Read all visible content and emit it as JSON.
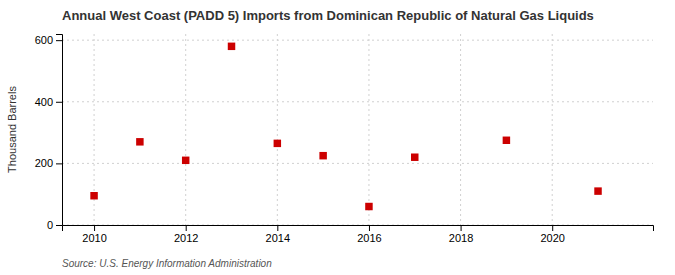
{
  "chart_data": {
    "type": "scatter",
    "title": "Annual West Coast (PADD 5) Imports from Dominican Republic of Natural Gas Liquids",
    "ylabel": "Thousand Barrels",
    "source": "Source: U.S. Energy Information Administration",
    "x": [
      2010,
      2011,
      2012,
      2013,
      2014,
      2015,
      2016,
      2017,
      2019,
      2021
    ],
    "values": [
      95,
      270,
      210,
      580,
      265,
      225,
      60,
      220,
      275,
      110
    ],
    "color": "#cc0000",
    "marker": "square",
    "xlim": [
      2009.3,
      2022.2
    ],
    "ylim": [
      0,
      620
    ],
    "xticks": [
      2010,
      2012,
      2014,
      2016,
      2018,
      2020
    ],
    "yticks": [
      0,
      200,
      400,
      600
    ],
    "grid": true
  }
}
